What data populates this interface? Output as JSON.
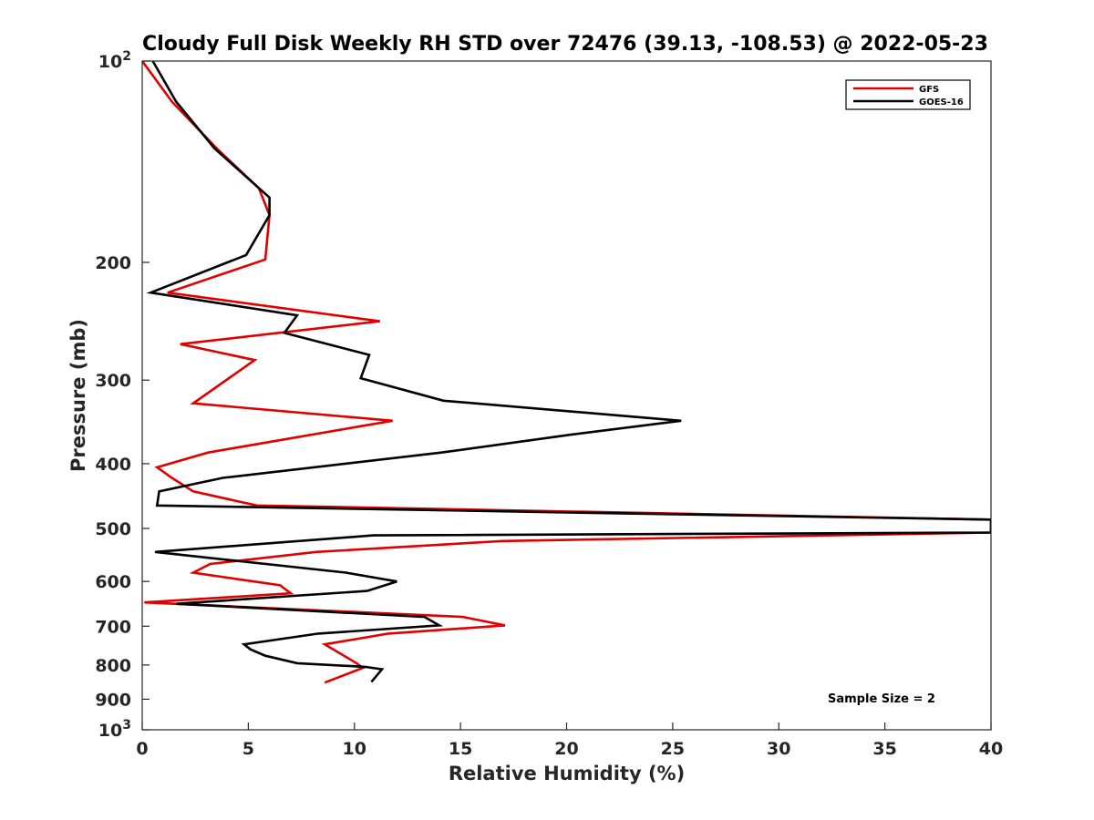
{
  "chart_data": {
    "type": "line",
    "title": "Cloudy Full Disk Weekly RH STD over 72476 (39.13, -108.53) @ 2022-05-23",
    "xlabel": "Relative Humidity (%)",
    "ylabel": "Pressure (mb)",
    "xlim": [
      0,
      40
    ],
    "ylim": [
      100,
      1000
    ],
    "y_scale": "log",
    "y_reversed": true,
    "grid": false,
    "legend_position": "top-right",
    "x_ticks": [
      0,
      5,
      10,
      15,
      20,
      25,
      30,
      35,
      40
    ],
    "y_ticks": [
      {
        "value": 100,
        "label": "10",
        "sup": "2"
      },
      {
        "value": 200,
        "label": "200"
      },
      {
        "value": 300,
        "label": "300"
      },
      {
        "value": 400,
        "label": "400"
      },
      {
        "value": 500,
        "label": "500"
      },
      {
        "value": 600,
        "label": "600"
      },
      {
        "value": 700,
        "label": "700"
      },
      {
        "value": 800,
        "label": "800"
      },
      {
        "value": 900,
        "label": "900"
      },
      {
        "value": 1000,
        "label": "10",
        "sup": "3"
      }
    ],
    "annotation": "Sample Size = 2",
    "series": [
      {
        "name": "GFS",
        "color": "#e00000",
        "points": [
          [
            0.0,
            100
          ],
          [
            1.4,
            115
          ],
          [
            3.5,
            135
          ],
          [
            5.5,
            155
          ],
          [
            6.0,
            170
          ],
          [
            5.8,
            198
          ],
          [
            1.2,
            222
          ],
          [
            11.2,
            245
          ],
          [
            1.8,
            265
          ],
          [
            5.3,
            280
          ],
          [
            2.4,
            325
          ],
          [
            11.8,
            345
          ],
          [
            3.1,
            385
          ],
          [
            0.7,
            405
          ],
          [
            1.4,
            420
          ],
          [
            2.4,
            440
          ],
          [
            5.4,
            462
          ],
          [
            40.0,
            485
          ],
          [
            40.0,
            507
          ],
          [
            17.0,
            522
          ],
          [
            8.2,
            542
          ],
          [
            3.2,
            565
          ],
          [
            2.4,
            582
          ],
          [
            6.5,
            608
          ],
          [
            7.0,
            625
          ],
          [
            0.1,
            645
          ],
          [
            15.1,
            678
          ],
          [
            17.1,
            698
          ],
          [
            11.6,
            718
          ],
          [
            8.6,
            745
          ],
          [
            10.1,
            795
          ],
          [
            10.4,
            808
          ],
          [
            8.6,
            850
          ]
        ]
      },
      {
        "name": "GOES-16",
        "color": "#000000",
        "points": [
          [
            0.5,
            100
          ],
          [
            1.6,
            115
          ],
          [
            3.4,
            135
          ],
          [
            6.0,
            160
          ],
          [
            6.0,
            170
          ],
          [
            4.9,
            195
          ],
          [
            0.4,
            222
          ],
          [
            7.3,
            240
          ],
          [
            6.7,
            255
          ],
          [
            10.7,
            275
          ],
          [
            10.3,
            298
          ],
          [
            14.2,
            322
          ],
          [
            25.4,
            345
          ],
          [
            20.2,
            362
          ],
          [
            14.1,
            385
          ],
          [
            3.8,
            420
          ],
          [
            0.8,
            440
          ],
          [
            0.7,
            462
          ],
          [
            40.0,
            485
          ],
          [
            40.0,
            507
          ],
          [
            10.9,
            512
          ],
          [
            0.6,
            542
          ],
          [
            9.6,
            582
          ],
          [
            12.0,
            600
          ],
          [
            10.6,
            620
          ],
          [
            1.6,
            648
          ],
          [
            13.3,
            678
          ],
          [
            14.0,
            698
          ],
          [
            8.3,
            718
          ],
          [
            4.8,
            745
          ],
          [
            5.1,
            758
          ],
          [
            5.8,
            775
          ],
          [
            7.3,
            795
          ],
          [
            10.5,
            805
          ],
          [
            11.3,
            812
          ],
          [
            10.8,
            848
          ]
        ]
      }
    ]
  }
}
